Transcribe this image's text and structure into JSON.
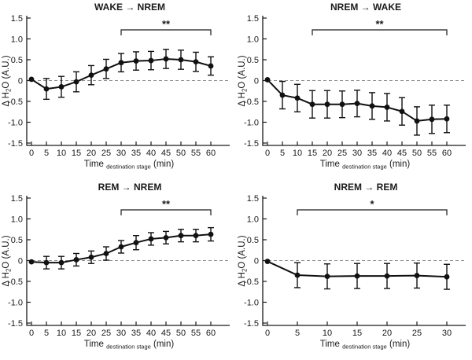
{
  "figure": {
    "background": "#ffffff",
    "line_color": "#111111",
    "zero_line_color": "#8c8c8c",
    "axis_color": "#1a1a1a"
  },
  "chart_data": [
    {
      "type": "line",
      "title": "WAKE → NREM",
      "x": [
        0,
        5,
        10,
        15,
        20,
        25,
        30,
        35,
        40,
        45,
        50,
        55,
        60
      ],
      "values": [
        0.03,
        -0.2,
        -0.15,
        -0.03,
        0.13,
        0.28,
        0.43,
        0.47,
        0.48,
        0.52,
        0.5,
        0.45,
        0.35
      ],
      "errors": [
        0,
        0.25,
        0.25,
        0.24,
        0.23,
        0.23,
        0.22,
        0.22,
        0.22,
        0.23,
        0.23,
        0.23,
        0.22
      ],
      "xlim": [
        0,
        60
      ],
      "ylim": [
        -1.5,
        1.5
      ],
      "xticks": [
        0,
        5,
        10,
        15,
        20,
        25,
        30,
        35,
        40,
        45,
        50,
        55,
        60
      ],
      "xtick_labels": [
        "0",
        "5",
        "10",
        "15",
        "20",
        "25",
        "30",
        "35",
        "40",
        "45",
        "50",
        "55",
        "60"
      ],
      "yticks": [
        1.5,
        1.0,
        0.5,
        0,
        -0.5,
        -1.0,
        -1.5
      ],
      "ytick_labels": [
        "1.5",
        "1.0",
        "0.5",
        "0",
        "-0.5",
        "-1.0",
        "-1.5"
      ],
      "xlabel": {
        "main": "Time",
        "sub": "destination stage",
        "unit": " (min)"
      },
      "ylabel": {
        "pre": "Δ H",
        "sub": "2",
        "post": "O (A.U.)"
      },
      "zero_line": true,
      "grid": false,
      "legend": null,
      "significance": {
        "x1": 30,
        "x2": 60,
        "label": "**"
      }
    },
    {
      "type": "line",
      "title": "NREM → WAKE",
      "x": [
        0,
        5,
        10,
        15,
        20,
        25,
        30,
        35,
        40,
        45,
        50,
        55,
        60
      ],
      "values": [
        0.02,
        -0.35,
        -0.42,
        -0.57,
        -0.57,
        -0.57,
        -0.55,
        -0.61,
        -0.64,
        -0.74,
        -0.97,
        -0.93,
        -0.92
      ],
      "errors": [
        0,
        0.33,
        0.33,
        0.33,
        0.33,
        0.32,
        0.32,
        0.32,
        0.33,
        0.33,
        0.34,
        0.34,
        0.33
      ],
      "xlim": [
        0,
        60
      ],
      "ylim": [
        -1.5,
        1.5
      ],
      "xticks": [
        0,
        5,
        10,
        15,
        20,
        25,
        30,
        35,
        40,
        45,
        50,
        55,
        60
      ],
      "xtick_labels": [
        "0",
        "5",
        "10",
        "15",
        "20",
        "25",
        "30",
        "35",
        "40",
        "45",
        "50",
        "55",
        "60"
      ],
      "yticks": [
        1.5,
        1.0,
        0.5,
        0,
        -0.5,
        -1.0,
        -1.5
      ],
      "ytick_labels": [
        "1.5",
        "1.0",
        "0.5",
        "0",
        "-0.5",
        "-1.0",
        "-1.5"
      ],
      "xlabel": {
        "main": "Time",
        "sub": "destination stage",
        "unit": " (min)"
      },
      "ylabel": {
        "pre": "Δ H",
        "sub": "2",
        "post": "O (A.U.)"
      },
      "zero_line": true,
      "grid": false,
      "legend": null,
      "significance": {
        "x1": 15,
        "x2": 60,
        "label": "**"
      }
    },
    {
      "type": "line",
      "title": "REM → NREM",
      "x": [
        0,
        5,
        10,
        15,
        20,
        25,
        30,
        35,
        40,
        45,
        50,
        55,
        60
      ],
      "values": [
        -0.03,
        -0.05,
        -0.05,
        0.02,
        0.08,
        0.17,
        0.33,
        0.43,
        0.52,
        0.55,
        0.6,
        0.6,
        0.63
      ],
      "errors": [
        0,
        0.15,
        0.15,
        0.15,
        0.15,
        0.16,
        0.15,
        0.17,
        0.15,
        0.15,
        0.15,
        0.15,
        0.16
      ],
      "xlim": [
        0,
        60
      ],
      "ylim": [
        -1.5,
        1.5
      ],
      "xticks": [
        0,
        5,
        10,
        15,
        20,
        25,
        30,
        35,
        40,
        45,
        50,
        55,
        60
      ],
      "xtick_labels": [
        "0",
        "5",
        "10",
        "15",
        "20",
        "25",
        "30",
        "35",
        "40",
        "45",
        "50",
        "55",
        "60"
      ],
      "yticks": [
        1.5,
        1.0,
        0.5,
        0,
        -0.5,
        -1.0,
        -1.5
      ],
      "ytick_labels": [
        "1.5",
        "1.0",
        "0.5",
        "0",
        "-0.5",
        "-1.0",
        "-1.5"
      ],
      "xlabel": {
        "main": "Time",
        "sub": "destination stage",
        "unit": " (min)"
      },
      "ylabel": {
        "pre": "Δ H",
        "sub": "2",
        "post": "O (A.U.)"
      },
      "zero_line": true,
      "grid": false,
      "legend": null,
      "significance": {
        "x1": 30,
        "x2": 60,
        "label": "**"
      }
    },
    {
      "type": "line",
      "title": "NREM → REM",
      "x": [
        0,
        5,
        10,
        15,
        20,
        25,
        30
      ],
      "values": [
        -0.02,
        -0.35,
        -0.38,
        -0.37,
        -0.37,
        -0.36,
        -0.39
      ],
      "errors": [
        0,
        0.3,
        0.3,
        0.3,
        0.3,
        0.3,
        0.3
      ],
      "xlim": [
        0,
        30
      ],
      "ylim": [
        -1.5,
        1.5
      ],
      "xticks": [
        0,
        5,
        10,
        15,
        20,
        25,
        30
      ],
      "xtick_labels": [
        "0",
        "5",
        "10",
        "15",
        "20",
        "25",
        "30"
      ],
      "yticks": [
        1.5,
        1.0,
        0.5,
        0,
        -0.5,
        -1.0,
        -1.5
      ],
      "ytick_labels": [
        "1.5",
        "1.0",
        "0.5",
        "0",
        "-0.5",
        "-1.0",
        "-1.5"
      ],
      "xlabel": {
        "main": "Time",
        "sub": "destination stage",
        "unit": " (min)"
      },
      "ylabel": {
        "pre": "Δ H",
        "sub": "2",
        "post": "O (A.U.)"
      },
      "zero_line": true,
      "grid": false,
      "legend": null,
      "significance": {
        "x1": 5,
        "x2": 30,
        "label": "*"
      }
    }
  ]
}
